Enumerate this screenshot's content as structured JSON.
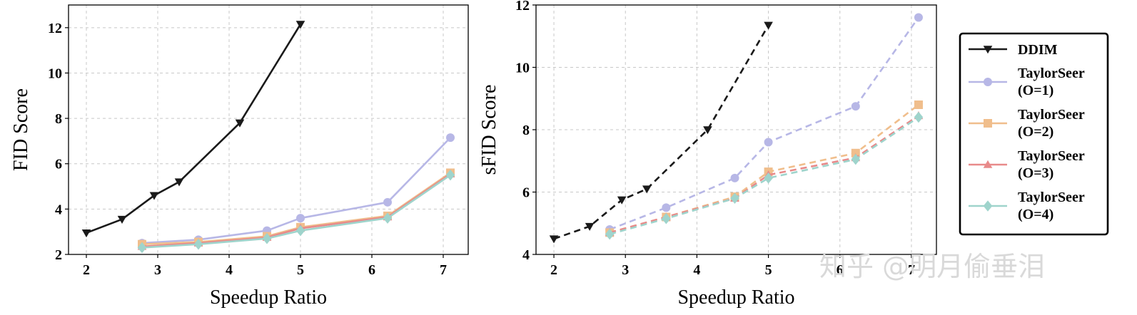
{
  "chart_data": [
    {
      "type": "line",
      "title": "",
      "xlabel": "Speedup Ratio",
      "ylabel": "FID Score",
      "xlim": [
        1.75,
        7.35
      ],
      "ylim": [
        2,
        13
      ],
      "xticks": [
        2,
        3,
        4,
        5,
        6,
        7
      ],
      "yticks": [
        2,
        4,
        6,
        8,
        10,
        12
      ],
      "grid": true,
      "line_style": "solid",
      "series": [
        {
          "name": "DDIM",
          "color": "#1a1a1a",
          "marker": "triangle-down",
          "x": [
            2.0,
            2.5,
            2.95,
            3.3,
            4.15,
            5.0
          ],
          "y": [
            2.95,
            3.55,
            4.6,
            5.2,
            7.8,
            12.15
          ]
        },
        {
          "name": "TaylorSeer\n(O=1)",
          "color": "#b7b7e6",
          "marker": "circle",
          "x": [
            2.78,
            3.57,
            4.53,
            5.0,
            6.22,
            7.1
          ],
          "y": [
            2.5,
            2.65,
            3.05,
            3.6,
            4.3,
            7.15
          ]
        },
        {
          "name": "TaylorSeer\n(O=2)",
          "color": "#f0be8c",
          "marker": "square",
          "x": [
            2.78,
            3.57,
            4.53,
            5.0,
            6.22,
            7.1
          ],
          "y": [
            2.45,
            2.55,
            2.8,
            3.2,
            3.7,
            5.6
          ]
        },
        {
          "name": "TaylorSeer\n(O=3)",
          "color": "#e88a8a",
          "marker": "triangle-up",
          "x": [
            2.78,
            3.57,
            4.53,
            5.0,
            6.22,
            7.1
          ],
          "y": [
            2.35,
            2.5,
            2.75,
            3.15,
            3.65,
            5.55
          ]
        },
        {
          "name": "TaylorSeer\n(O=4)",
          "color": "#9fd4cc",
          "marker": "diamond",
          "x": [
            2.78,
            3.57,
            4.53,
            5.0,
            6.22,
            7.1
          ],
          "y": [
            2.3,
            2.45,
            2.7,
            3.05,
            3.6,
            5.5
          ]
        }
      ]
    },
    {
      "type": "line",
      "title": "",
      "xlabel": "Speedup Ratio",
      "ylabel": "sFID Score",
      "xlim": [
        1.75,
        7.35
      ],
      "ylim": [
        4,
        12
      ],
      "xticks": [
        2,
        3,
        4,
        5,
        6,
        7
      ],
      "yticks": [
        4,
        6,
        8,
        10,
        12
      ],
      "grid": true,
      "line_style": "dashed",
      "series": [
        {
          "name": "DDIM",
          "color": "#1a1a1a",
          "marker": "triangle-down",
          "x": [
            2.0,
            2.5,
            2.95,
            3.3,
            4.15,
            5.0
          ],
          "y": [
            4.5,
            4.9,
            5.75,
            6.1,
            8.0,
            11.35
          ]
        },
        {
          "name": "TaylorSeer\n(O=1)",
          "color": "#b7b7e6",
          "marker": "circle",
          "x": [
            2.78,
            3.57,
            4.53,
            5.0,
            6.22,
            7.1
          ],
          "y": [
            4.8,
            5.5,
            6.45,
            7.6,
            8.75,
            11.6
          ]
        },
        {
          "name": "TaylorSeer\n(O=2)",
          "color": "#f0be8c",
          "marker": "square",
          "x": [
            2.78,
            3.57,
            4.53,
            5.0,
            6.22,
            7.1
          ],
          "y": [
            4.7,
            5.2,
            5.85,
            6.65,
            7.25,
            8.8
          ]
        },
        {
          "name": "TaylorSeer\n(O=3)",
          "color": "#e88a8a",
          "marker": "triangle-up",
          "x": [
            2.78,
            3.57,
            4.53,
            5.0,
            6.22,
            7.1
          ],
          "y": [
            4.7,
            5.2,
            5.8,
            6.55,
            7.1,
            8.45
          ]
        },
        {
          "name": "TaylorSeer\n(O=4)",
          "color": "#9fd4cc",
          "marker": "diamond",
          "x": [
            2.78,
            3.57,
            4.53,
            5.0,
            6.22,
            7.1
          ],
          "y": [
            4.65,
            5.15,
            5.8,
            6.45,
            7.05,
            8.4
          ]
        }
      ]
    }
  ],
  "legend": {
    "placement": "right",
    "entries": [
      {
        "lines": [
          "DDIM"
        ],
        "color": "#1a1a1a",
        "marker": "triangle-down"
      },
      {
        "lines": [
          "TaylorSeer",
          "(O=1)"
        ],
        "color": "#b7b7e6",
        "marker": "circle"
      },
      {
        "lines": [
          "TaylorSeer",
          "(O=2)"
        ],
        "color": "#f0be8c",
        "marker": "square"
      },
      {
        "lines": [
          "TaylorSeer",
          "(O=3)"
        ],
        "color": "#e88a8a",
        "marker": "triangle-up"
      },
      {
        "lines": [
          "TaylorSeer",
          "(O=4)"
        ],
        "color": "#9fd4cc",
        "marker": "diamond"
      }
    ]
  },
  "watermark": "知乎 @明月偷垂泪"
}
